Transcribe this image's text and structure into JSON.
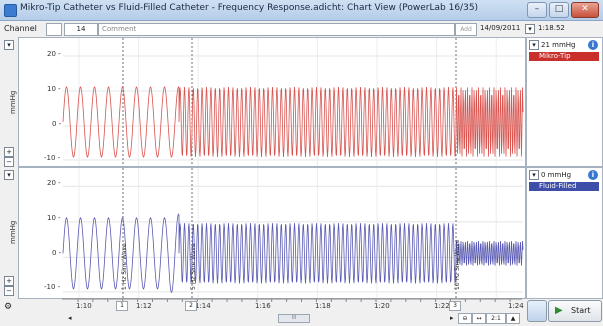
{
  "window": {
    "title": "Mikro-Tip Catheter vs Fluid-Filled Catheter - Frequency Response.adicht: Chart View (PowerLab 16/35)",
    "buttons": [
      "–",
      "□",
      "✕"
    ]
  },
  "toolbar": {
    "channel_label": "Channel",
    "channel_value": "14",
    "comment_placeholder": "Comment",
    "add_label": "Add",
    "date": "14/09/2011",
    "time": "1:18.52"
  },
  "channels": [
    {
      "name": "Mikro-Tip",
      "readout": "21 mmHg",
      "unit": "mmHg",
      "color": "#d9534f",
      "yticks": [
        "20 -",
        "10 -",
        "0 -",
        "-10 -"
      ]
    },
    {
      "name": "Fluid-Filled",
      "readout": "0 mmHg",
      "unit": "mmHg",
      "color": "#5a5ab4",
      "yticks": [
        "20 -",
        "10 -",
        "0 -",
        "-10 -"
      ]
    }
  ],
  "markers": [
    "1 Hz Sine Wave",
    "5 Hz Sine Wave",
    "10 Hz Sine Wave"
  ],
  "marker_badges": [
    "1",
    "2",
    "3"
  ],
  "x_axis": {
    "ticks": [
      "1:10",
      "1:12",
      "1:14",
      "1:16",
      "1:18",
      "1:20",
      "1:22",
      "1:24"
    ],
    "zoom": "2:1",
    "scroll_mid": "III"
  },
  "start_label": "Start",
  "icons": {
    "channel_settings": "gear-icon",
    "info": "info-icon",
    "start": "play-icon"
  }
}
